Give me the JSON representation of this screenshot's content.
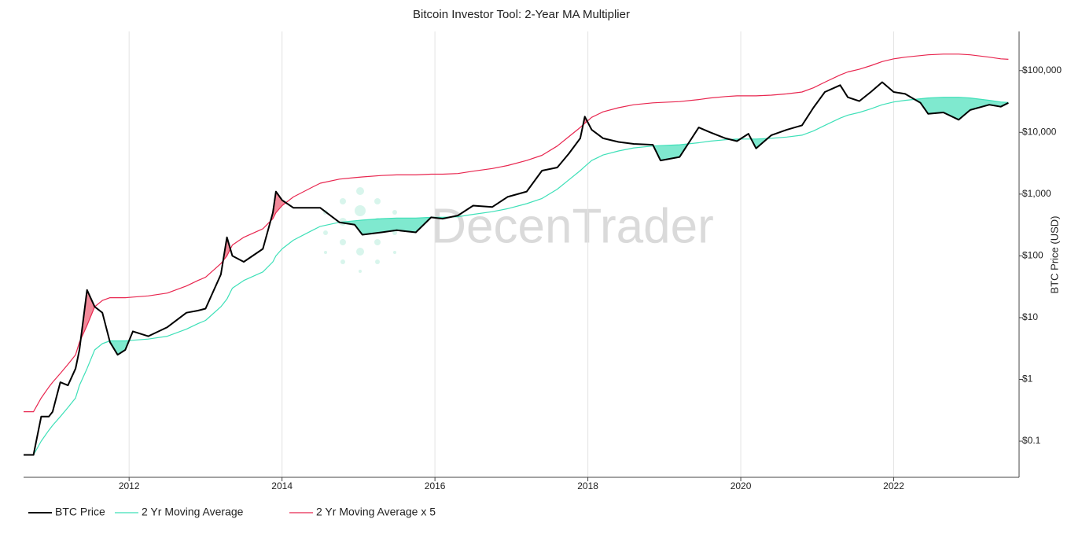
{
  "chart_data": {
    "type": "line",
    "title": "Bitcoin Investor Tool: 2-Year MA Multiplier",
    "y_label": "BTC Price (USD)",
    "watermark": "DecenTrader",
    "log_y": true,
    "grid_x": true,
    "legend": "bottom",
    "xlim": [
      2010.62,
      2023.64
    ],
    "xticks": [
      2012,
      2014,
      2016,
      2018,
      2020,
      2022
    ],
    "ylim": [
      0.026,
      430000
    ],
    "yticks": [
      {
        "value": 0.1,
        "label": "$0.1"
      },
      {
        "value": 1,
        "label": "$1"
      },
      {
        "value": 10,
        "label": "$10"
      },
      {
        "value": 100,
        "label": "$100"
      },
      {
        "value": 1000,
        "label": "$1,000"
      },
      {
        "value": 10000,
        "label": "$10,000"
      },
      {
        "value": 100000,
        "label": "$100,000"
      }
    ],
    "fill_below_color": "#7fe9cf",
    "fill_above_color": "#f28a9a",
    "x": [
      2010.62,
      2010.75,
      2010.85,
      2010.95,
      2011.0,
      2011.1,
      2011.2,
      2011.3,
      2011.35,
      2011.45,
      2011.55,
      2011.65,
      2011.75,
      2011.85,
      2011.95,
      2012.05,
      2012.25,
      2012.5,
      2012.75,
      2012.9,
      2013.0,
      2013.2,
      2013.28,
      2013.35,
      2013.5,
      2013.75,
      2013.88,
      2013.92,
      2014.0,
      2014.15,
      2014.4,
      2014.5,
      2014.75,
      2014.95,
      2015.05,
      2015.3,
      2015.5,
      2015.75,
      2015.95,
      2016.1,
      2016.3,
      2016.5,
      2016.75,
      2016.95,
      2017.2,
      2017.4,
      2017.6,
      2017.75,
      2017.9,
      2017.96,
      2018.05,
      2018.2,
      2018.4,
      2018.6,
      2018.85,
      2018.95,
      2019.2,
      2019.45,
      2019.6,
      2019.8,
      2019.95,
      2020.1,
      2020.2,
      2020.4,
      2020.6,
      2020.8,
      2020.95,
      2021.1,
      2021.3,
      2021.4,
      2021.55,
      2021.7,
      2021.85,
      2022.0,
      2022.15,
      2022.35,
      2022.45,
      2022.65,
      2022.85,
      2023.0,
      2023.25,
      2023.4,
      2023.5
    ],
    "series": [
      {
        "name": "BTC Price",
        "color": "#000000",
        "width": 2,
        "values": [
          0.06,
          0.06,
          0.25,
          0.25,
          0.3,
          0.9,
          0.8,
          1.5,
          3,
          28,
          15,
          12,
          4,
          2.5,
          3,
          6,
          5,
          7,
          12,
          13,
          14,
          50,
          200,
          100,
          80,
          130,
          500,
          1100,
          800,
          600,
          600,
          600,
          350,
          320,
          220,
          240,
          260,
          240,
          420,
          400,
          450,
          650,
          620,
          900,
          1100,
          2400,
          2700,
          4500,
          8000,
          18000,
          11000,
          8000,
          7000,
          6500,
          6300,
          3500,
          4000,
          12000,
          10000,
          8000,
          7200,
          9500,
          5500,
          9000,
          11000,
          13000,
          25000,
          45000,
          58000,
          37000,
          32000,
          45000,
          65000,
          45000,
          42000,
          30000,
          20000,
          21000,
          16000,
          23000,
          28000,
          26000,
          30000
        ]
      },
      {
        "name": "2 Yr Moving Average",
        "color": "#3ee0b8",
        "width": 1.2,
        "values": [
          0.06,
          0.06,
          0.1,
          0.15,
          0.18,
          0.25,
          0.35,
          0.5,
          0.8,
          1.5,
          3,
          3.8,
          4.2,
          4.2,
          4.2,
          4.3,
          4.5,
          5,
          6.5,
          8,
          9,
          15,
          20,
          30,
          40,
          55,
          80,
          100,
          130,
          180,
          260,
          300,
          350,
          370,
          380,
          400,
          410,
          410,
          420,
          420,
          430,
          470,
          520,
          580,
          700,
          850,
          1200,
          1700,
          2400,
          2800,
          3500,
          4300,
          5000,
          5600,
          6000,
          6100,
          6300,
          6800,
          7200,
          7600,
          7800,
          7800,
          7800,
          8000,
          8400,
          9000,
          10500,
          13000,
          17000,
          19000,
          21000,
          24000,
          28000,
          31000,
          33000,
          35000,
          36000,
          37000,
          37000,
          36000,
          33000,
          31000,
          30500
        ]
      },
      {
        "name": "2 Yr Moving Average x 5",
        "color": "#e8264f",
        "width": 1.2,
        "values": [
          0.3,
          0.3,
          0.5,
          0.75,
          0.9,
          1.25,
          1.75,
          2.5,
          4,
          7.5,
          15,
          19,
          21,
          21,
          21,
          21.5,
          22.5,
          25,
          32.5,
          40,
          45,
          75,
          100,
          150,
          200,
          275,
          400,
          500,
          650,
          900,
          1300,
          1500,
          1750,
          1850,
          1900,
          2000,
          2050,
          2050,
          2100,
          2100,
          2150,
          2350,
          2600,
          2900,
          3500,
          4250,
          6000,
          8500,
          12000,
          14000,
          17500,
          21500,
          25000,
          28000,
          30000,
          30500,
          31500,
          34000,
          36000,
          38000,
          39000,
          39000,
          39000,
          40000,
          42000,
          45000,
          52500,
          65000,
          85000,
          95000,
          105000,
          120000,
          140000,
          155000,
          165000,
          175000,
          180000,
          185000,
          185000,
          180000,
          165000,
          155000,
          152500
        ]
      }
    ]
  }
}
